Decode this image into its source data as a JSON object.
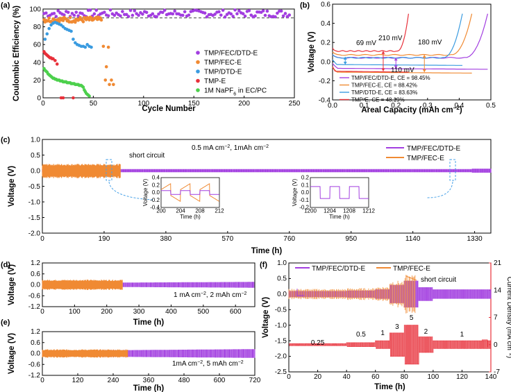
{
  "colors": {
    "purple": "#a23ee0",
    "orange": "#f08a33",
    "blue": "#3a9be0",
    "red": "#e8303a",
    "green": "#4cd04c",
    "dash": "#222222",
    "arrow": "#4aa3e8",
    "redaxis": "#e8303a"
  },
  "chart_data": [
    {
      "panel": "(a)",
      "type": "scatter",
      "xlabel": "Cycle Number",
      "ylabel": "Coulombic Efficiency (%)",
      "xlim": [
        0,
        250
      ],
      "ylim": [
        0,
        100
      ],
      "xticks": [
        "0",
        "50",
        "100",
        "150",
        "200",
        "250"
      ],
      "yticks": [
        "0",
        "20",
        "40",
        "60",
        "80",
        "100"
      ],
      "reference_line_y": 90,
      "series": [
        {
          "name": "TMP/FEC/DTD-E",
          "color": "#a23ee0",
          "x_range": [
            1,
            245
          ],
          "y_mean": 95,
          "y_spread": 4
        },
        {
          "name": "TMP/FEC-E",
          "color": "#f08a33",
          "x_range": [
            1,
            58
          ],
          "y_mean": 88,
          "y_spread": 3,
          "tail_x": [
            60,
            62,
            63,
            65,
            66,
            68,
            70
          ],
          "tail_y": [
            58,
            20,
            35,
            57,
            15,
            20,
            15
          ]
        },
        {
          "name": "TMP/DTD-E",
          "color": "#3a9be0",
          "x": [
            2,
            4,
            6,
            8,
            10,
            12,
            14,
            16,
            18,
            20,
            22,
            24,
            26,
            28,
            30,
            32,
            34,
            36,
            38,
            40,
            42,
            44,
            46,
            48
          ],
          "y": [
            66,
            72,
            78,
            82,
            84,
            85,
            84,
            83,
            82,
            80,
            78,
            77,
            76,
            75,
            66,
            62,
            60,
            59,
            58,
            58,
            57,
            60,
            58,
            57
          ]
        },
        {
          "name": "TMP-E",
          "color": "#e8303a",
          "x": [
            1,
            2,
            3,
            4,
            5,
            6,
            7,
            8,
            9,
            10,
            12,
            14,
            18,
            20,
            30
          ],
          "y": [
            52,
            50,
            49,
            48,
            47,
            46,
            45,
            45,
            44,
            44,
            42,
            38,
            0,
            0,
            0
          ]
        },
        {
          "name": "1M NaPF₆ in EC/PC",
          "color": "#4cd04c",
          "x": [
            1,
            2,
            3,
            4,
            5,
            6,
            7,
            8,
            9,
            10,
            11,
            12,
            13,
            14,
            15,
            16,
            17,
            18,
            19,
            20,
            21,
            22,
            23,
            24,
            25,
            26,
            27,
            28,
            29,
            30,
            31,
            32,
            33,
            34,
            35,
            36,
            37,
            38,
            39,
            40,
            41,
            42,
            43,
            44,
            45,
            46
          ],
          "y": [
            33,
            31,
            30,
            29,
            27,
            26,
            25,
            24,
            23,
            22,
            22,
            21,
            21,
            20,
            20,
            20,
            19,
            19,
            19,
            18,
            18,
            18,
            18,
            17,
            17,
            17,
            17,
            16,
            16,
            16,
            16,
            15,
            15,
            15,
            15,
            14,
            14,
            14,
            13,
            12,
            9,
            7,
            5,
            4,
            3,
            2
          ]
        }
      ]
    },
    {
      "panel": "(b)",
      "type": "line",
      "xlabel": "Areal Capacity (mAh cm⁻²)",
      "ylabel": "Voltage (V)",
      "xlim": [
        0,
        0.5
      ],
      "ylim": [
        -0.4,
        0.6
      ],
      "xticks": [
        "0.0",
        "0.1",
        "0.2",
        "0.3",
        "0.4",
        "0.5"
      ],
      "yticks": [
        "-0.4",
        "-0.2",
        "0.0",
        "0.2",
        "0.4",
        "0.6"
      ],
      "annotations": [
        "69 mV",
        "210 mV",
        "180 mV",
        "110 mV"
      ],
      "series": [
        {
          "name": "TMP/FEC/DTD-E, CE = 98.45%",
          "color": "#a23ee0",
          "plateau_charge": 0.04,
          "plateau_discharge": -0.07,
          "end_capacity": 0.49
        },
        {
          "name": "TMP/FEC-E, CE = 88.42%",
          "color": "#f08a33",
          "plateau_charge": 0.07,
          "plateau_discharge": -0.11,
          "end_capacity": 0.44
        },
        {
          "name": "TMP/DTD-E, CE = 83.63%",
          "color": "#3a9be0",
          "plateau_charge": 0.04,
          "plateau_discharge": -0.03,
          "end_capacity": 0.41
        },
        {
          "name": "TMP-E, CE = 48.19%",
          "color": "#e8303a",
          "plateau_charge": 0.11,
          "plateau_discharge": -0.1,
          "end_capacity": 0.24
        }
      ]
    },
    {
      "panel": "(c)",
      "type": "line",
      "xlabel": "Time (h)",
      "ylabel": "Voltage (V)",
      "xlim": [
        0,
        1380
      ],
      "ylim": [
        -2.0,
        1.0
      ],
      "xticks": [
        "0",
        "190",
        "380",
        "570",
        "760",
        "950",
        "1140",
        "1330"
      ],
      "yticks": [
        "-2.0",
        "-1.5",
        "-1.0",
        "-0.5",
        "0.0",
        "0.5",
        "1.0"
      ],
      "condition": "0.5 mA cm⁻², 1mAh cm⁻²",
      "annotation": "short circuit",
      "series": [
        {
          "name": "TMP/FEC/DTD-E",
          "color": "#a23ee0",
          "x_end": 1380,
          "amplitude": 0.05
        },
        {
          "name": "TMP/FEC-E",
          "color": "#f08a33",
          "x_end": 240,
          "amplitude": 0.2
        }
      ],
      "insets": [
        {
          "xlabel": "Time (h)",
          "ylabel": "Voltage (V)",
          "xticks": [
            "200",
            "204",
            "208",
            "212"
          ],
          "yticks": [
            "0.4",
            "0.2",
            "0.0",
            "-0.2",
            "-0.4"
          ]
        },
        {
          "xlabel": "Time (h)",
          "ylabel": "Voltage (V)",
          "xticks": [
            "1200",
            "1204",
            "1208",
            "1212"
          ],
          "yticks": [
            "0.2",
            "0.1",
            "0.0",
            "-0.1",
            "-0.2"
          ]
        }
      ]
    },
    {
      "panel": "(d)",
      "type": "line",
      "xlabel": "Time (h)",
      "ylabel": "Voltage (V)",
      "xlim": [
        0,
        660
      ],
      "ylim": [
        -1.2,
        1.2
      ],
      "xticks": [
        "0",
        "100",
        "200",
        "300",
        "400",
        "500",
        "600"
      ],
      "yticks": [
        "-1.2",
        "-0.6",
        "0.0",
        "0.6",
        "1.2"
      ],
      "condition": "1 mA cm⁻², 2 mAh cm⁻²",
      "series": [
        {
          "name": "TMP/FEC/DTD-E",
          "color": "#a23ee0",
          "x_end": 660
        },
        {
          "name": "TMP/FEC-E",
          "color": "#f08a33",
          "x_end": 250
        }
      ]
    },
    {
      "panel": "(e)",
      "type": "line",
      "xlabel": "Time (h)",
      "ylabel": "Voltage (V)",
      "xlim": [
        0,
        720
      ],
      "ylim": [
        -1.2,
        1.2
      ],
      "xticks": [
        "0",
        "120",
        "240",
        "360",
        "480",
        "600",
        "720"
      ],
      "yticks": [
        "-1.2",
        "-0.6",
        "0.0",
        "0.6",
        "1.2"
      ],
      "condition": "1mA cm⁻², 5 mAh cm⁻²",
      "series": [
        {
          "name": "TMP/FEC/DTD-E",
          "color": "#a23ee0",
          "x_end": 720
        },
        {
          "name": "TMP/FEC-E",
          "color": "#f08a33",
          "x_end": 290
        }
      ]
    },
    {
      "panel": "(f)",
      "type": "line",
      "xlabel": "Time (h)",
      "ylabel": "Voltage (V)",
      "y2label": "Current Density (mA cm⁻²)",
      "xlim": [
        0,
        140
      ],
      "ylim": [
        -2.5,
        1.0
      ],
      "y2lim": [
        -7,
        21
      ],
      "xticks": [
        "0",
        "20",
        "40",
        "60",
        "80",
        "100",
        "120",
        "140"
      ],
      "yticks": [
        "-2.5",
        "-2.0",
        "-1.5",
        "-1.0",
        "-0.5",
        "0.0",
        "0.5",
        "1.0"
      ],
      "y2ticks": [
        "-7",
        "0",
        "7",
        "14",
        "21"
      ],
      "annotation": "short circuit",
      "current_steps": [
        {
          "label": "0.25",
          "x_start": 0,
          "x_end": 40,
          "value": 0.25
        },
        {
          "label": "0.5",
          "x_start": 40,
          "x_end": 60,
          "value": 0.5
        },
        {
          "label": "1",
          "x_start": 60,
          "x_end": 70,
          "value": 1
        },
        {
          "label": "3",
          "x_start": 70,
          "x_end": 80,
          "value": 3
        },
        {
          "label": "5",
          "x_start": 80,
          "x_end": 90,
          "value": 5
        },
        {
          "label": "2",
          "x_start": 90,
          "x_end": 100,
          "value": 2
        },
        {
          "label": "1",
          "x_start": 100,
          "x_end": 140,
          "value": 1
        }
      ],
      "series": [
        {
          "name": "TMP/FEC/DTD-E",
          "color": "#a23ee0",
          "x_end": 140
        },
        {
          "name": "TMP/FEC-E",
          "color": "#f08a33",
          "x_end": 88
        }
      ]
    }
  ]
}
